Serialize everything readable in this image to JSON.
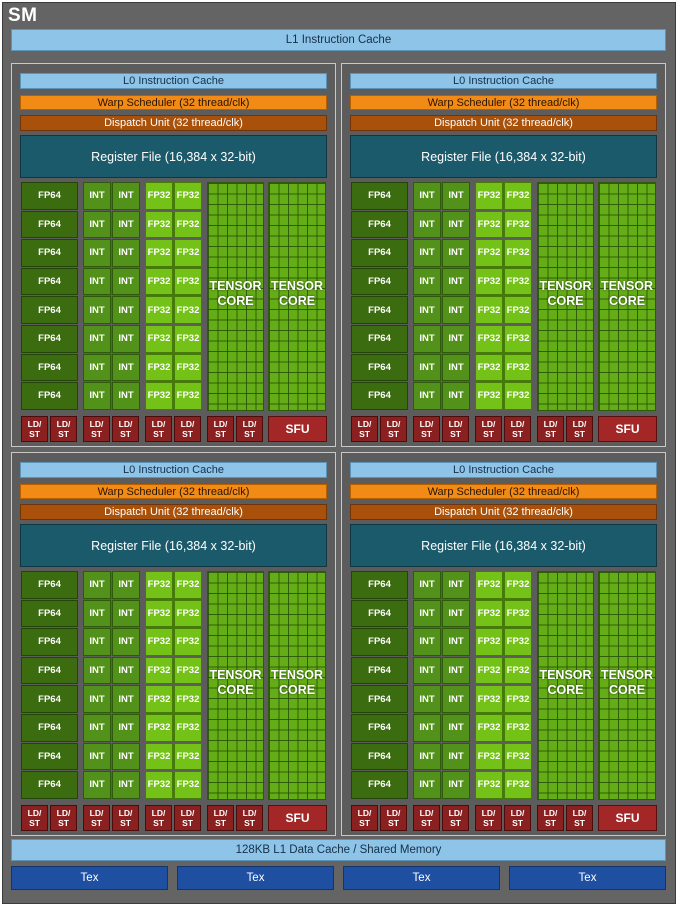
{
  "sm_title": "SM",
  "l1_instruction_cache": "L1 Instruction Cache",
  "processing_block": {
    "l0_instruction_cache": "L0 Instruction Cache",
    "warp_scheduler": "Warp Scheduler (32 thread/clk)",
    "dispatch_unit": "Dispatch Unit (32 thread/clk)",
    "register_file": "Register File (16,384 x 32-bit)",
    "fp64_label": "FP64",
    "int_label": "INT",
    "fp32_label": "FP32",
    "tensor_core_label": "TENSOR CORE",
    "ld_st_label": "LD/ ST",
    "sfu_label": "SFU",
    "rows_per_column": 8,
    "ld_st_units": 8
  },
  "processing_blocks": [
    {
      "id": "block-top-left"
    },
    {
      "id": "block-top-right"
    },
    {
      "id": "block-bottom-left"
    },
    {
      "id": "block-bottom-right"
    }
  ],
  "l1_data_cache": "128KB L1 Data Cache / Shared Memory",
  "tex_units": [
    "Tex",
    "Tex",
    "Tex",
    "Tex"
  ],
  "colors": {
    "sm_background": "#646464",
    "cache_blue": "#8ec4e8",
    "warp_scheduler_orange": "#f28a16",
    "dispatch_brown": "#a9510a",
    "register_file_teal": "#1b5a6b",
    "fp64_green": "#3b6c10",
    "int_green": "#52921a",
    "fp32_green": "#74c218",
    "tensor_green": "#64ad16",
    "ld_st_red": "#8a2020",
    "tex_blue": "#1e4fa0"
  }
}
